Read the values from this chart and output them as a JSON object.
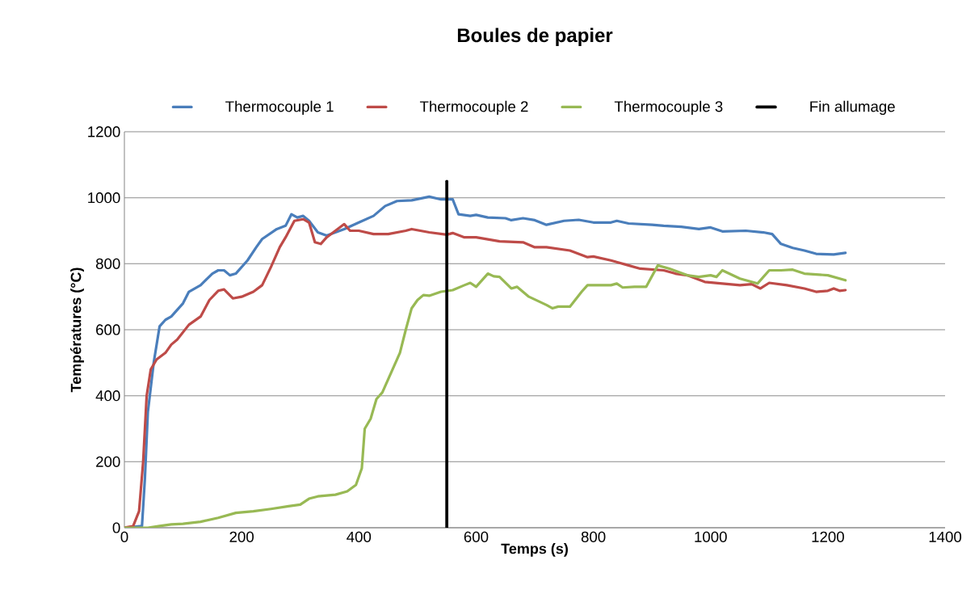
{
  "chart_data": {
    "type": "line",
    "title": "Boules de papier",
    "xlabel": "Temps (s)",
    "ylabel": "Températures (°C)",
    "xlim": [
      0,
      1400
    ],
    "xticks": [
      0,
      200,
      400,
      600,
      800,
      1000,
      1200,
      1400
    ],
    "ylim": [
      0,
      1200
    ],
    "yticks": [
      0,
      200,
      400,
      600,
      800,
      1000,
      1200
    ],
    "grid": "y",
    "legend": "top",
    "marker": "none",
    "series": [
      {
        "name": "Thermocouple 1",
        "color": "#4a7ebb",
        "x": [
          0,
          30,
          35,
          40,
          50,
          60,
          70,
          80,
          100,
          110,
          130,
          150,
          160,
          170,
          180,
          190,
          210,
          225,
          235,
          260,
          275,
          285,
          295,
          305,
          315,
          330,
          345,
          360,
          375,
          400,
          425,
          445,
          465,
          490,
          520,
          540,
          560,
          570,
          590,
          600,
          620,
          650,
          660,
          680,
          700,
          720,
          750,
          775,
          800,
          830,
          840,
          860,
          900,
          920,
          950,
          980,
          1000,
          1020,
          1060,
          1090,
          1105,
          1120,
          1140,
          1160,
          1180,
          1210,
          1230
        ],
        "values": [
          0,
          5,
          150,
          350,
          500,
          610,
          630,
          640,
          680,
          715,
          735,
          770,
          780,
          780,
          765,
          770,
          810,
          850,
          875,
          905,
          915,
          950,
          940,
          945,
          930,
          895,
          885,
          895,
          905,
          925,
          945,
          975,
          990,
          992,
          1003,
          995,
          995,
          950,
          945,
          948,
          940,
          938,
          932,
          938,
          932,
          918,
          930,
          933,
          925,
          925,
          930,
          922,
          918,
          915,
          912,
          905,
          910,
          898,
          900,
          895,
          890,
          860,
          848,
          840,
          830,
          828,
          833
        ]
      },
      {
        "name": "Thermocouple 2",
        "color": "#be4b48",
        "x": [
          0,
          15,
          25,
          32,
          38,
          45,
          55,
          70,
          80,
          90,
          110,
          130,
          145,
          160,
          170,
          185,
          200,
          220,
          235,
          250,
          265,
          275,
          290,
          305,
          315,
          325,
          335,
          345,
          360,
          375,
          385,
          400,
          425,
          450,
          480,
          490,
          520,
          550,
          560,
          580,
          600,
          640,
          680,
          700,
          720,
          760,
          790,
          800,
          830,
          860,
          880,
          920,
          940,
          960,
          990,
          1020,
          1050,
          1070,
          1085,
          1100,
          1130,
          1160,
          1180,
          1200,
          1210,
          1220,
          1230
        ],
        "values": [
          0,
          5,
          50,
          200,
          400,
          480,
          510,
          530,
          555,
          570,
          615,
          640,
          690,
          718,
          722,
          695,
          700,
          715,
          735,
          790,
          850,
          880,
          930,
          935,
          925,
          865,
          860,
          880,
          900,
          920,
          900,
          900,
          890,
          890,
          900,
          905,
          895,
          888,
          893,
          880,
          880,
          868,
          865,
          850,
          850,
          840,
          820,
          822,
          810,
          795,
          785,
          780,
          770,
          765,
          745,
          740,
          735,
          738,
          725,
          742,
          735,
          725,
          715,
          718,
          725,
          718,
          720
        ]
      },
      {
        "name": "Thermocouple 3",
        "color": "#98b954",
        "x": [
          0,
          40,
          60,
          80,
          100,
          130,
          160,
          190,
          220,
          250,
          280,
          300,
          315,
          330,
          360,
          380,
          395,
          405,
          410,
          420,
          430,
          440,
          455,
          470,
          480,
          490,
          500,
          510,
          520,
          540,
          560,
          580,
          590,
          600,
          620,
          630,
          640,
          660,
          670,
          690,
          720,
          730,
          740,
          760,
          780,
          790,
          800,
          830,
          840,
          850,
          870,
          890,
          910,
          930,
          960,
          980,
          1000,
          1010,
          1020,
          1050,
          1080,
          1100,
          1120,
          1140,
          1160,
          1200,
          1230
        ],
        "values": [
          0,
          0,
          5,
          10,
          12,
          18,
          30,
          45,
          50,
          57,
          65,
          70,
          88,
          95,
          100,
          110,
          130,
          180,
          300,
          330,
          390,
          410,
          470,
          530,
          600,
          665,
          690,
          705,
          703,
          715,
          720,
          735,
          742,
          730,
          770,
          762,
          760,
          725,
          730,
          700,
          675,
          665,
          670,
          670,
          715,
          735,
          735,
          735,
          740,
          728,
          730,
          730,
          795,
          785,
          765,
          760,
          765,
          760,
          780,
          755,
          740,
          780,
          780,
          782,
          770,
          765,
          750
        ]
      },
      {
        "name": "Fin allumage",
        "color": "#000000",
        "x": [
          550,
          550
        ],
        "values": [
          0,
          1050
        ]
      }
    ]
  }
}
